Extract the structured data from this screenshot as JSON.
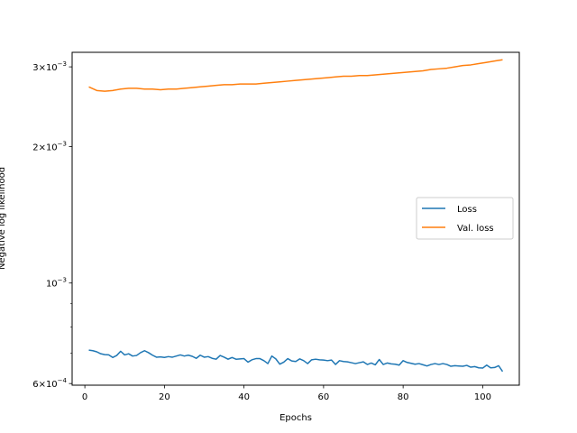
{
  "chart_data": {
    "type": "line",
    "title": "",
    "xlabel": "Epochs",
    "ylabel": "Negative log likelihood",
    "yscale": "log",
    "xlim": [
      -3.2,
      109.2
    ],
    "ylim": [
      0.000595,
      0.00323
    ],
    "x_ticks": [
      0,
      20,
      40,
      60,
      80,
      100
    ],
    "x_tick_labels": [
      "0",
      "20",
      "40",
      "60",
      "80",
      "100"
    ],
    "y_major_ticks": [
      0.0006,
      0.001,
      0.002,
      0.003
    ],
    "y_major_tick_labels": [
      {
        "mantissa": "6",
        "exponent": "−4"
      },
      {
        "mantissa": "",
        "exponent": "−3"
      },
      {
        "mantissa": "2",
        "exponent": "−3"
      },
      {
        "mantissa": "3",
        "exponent": "−3"
      }
    ],
    "y_minor_ticks": [
      0.0007,
      0.0008,
      0.0009
    ],
    "grid": false,
    "legend_position": "center-right",
    "series": [
      {
        "name": "Loss",
        "color": "#1f77b4",
        "x": [
          1,
          2,
          3,
          4,
          5,
          6,
          7,
          8,
          9,
          10,
          11,
          12,
          13,
          14,
          15,
          16,
          17,
          18,
          19,
          20,
          21,
          22,
          23,
          24,
          25,
          26,
          27,
          28,
          29,
          30,
          31,
          32,
          33,
          34,
          35,
          36,
          37,
          38,
          39,
          40,
          41,
          42,
          43,
          44,
          45,
          46,
          47,
          48,
          49,
          50,
          51,
          52,
          53,
          54,
          55,
          56,
          57,
          58,
          59,
          60,
          61,
          62,
          63,
          64,
          65,
          66,
          67,
          68,
          69,
          70,
          71,
          72,
          73,
          74,
          75,
          76,
          77,
          78,
          79,
          80,
          81,
          82,
          83,
          84,
          85,
          86,
          87,
          88,
          89,
          90,
          91,
          92,
          93,
          94,
          95,
          96,
          97,
          98,
          99,
          100,
          101,
          102,
          103,
          104,
          105
        ],
        "values": [
          0.000711,
          0.000709,
          0.000705,
          0.000698,
          0.000695,
          0.000694,
          0.000685,
          0.000692,
          0.000707,
          0.000694,
          0.000698,
          0.00069,
          0.000692,
          0.000702,
          0.000709,
          0.000702,
          0.000693,
          0.000686,
          0.000687,
          0.000685,
          0.000688,
          0.000686,
          0.00069,
          0.000694,
          0.00069,
          0.000693,
          0.000689,
          0.000682,
          0.000693,
          0.000686,
          0.000688,
          0.000682,
          0.000679,
          0.000692,
          0.000686,
          0.000679,
          0.000685,
          0.000679,
          0.00068,
          0.000681,
          0.000669,
          0.000677,
          0.000681,
          0.000681,
          0.000674,
          0.000664,
          0.00069,
          0.00068,
          0.000662,
          0.000669,
          0.000681,
          0.000673,
          0.000671,
          0.00068,
          0.000674,
          0.000664,
          0.000677,
          0.000679,
          0.000677,
          0.000676,
          0.000674,
          0.000676,
          0.000661,
          0.000674,
          0.000671,
          0.00067,
          0.000667,
          0.000664,
          0.000667,
          0.00067,
          0.000661,
          0.000666,
          0.00066,
          0.000678,
          0.000661,
          0.000666,
          0.000663,
          0.000662,
          0.000659,
          0.000674,
          0.000668,
          0.000665,
          0.000662,
          0.000664,
          0.00066,
          0.000656,
          0.000661,
          0.000664,
          0.000661,
          0.000664,
          0.000661,
          0.000655,
          0.000657,
          0.000656,
          0.000655,
          0.000658,
          0.000652,
          0.000654,
          0.00065,
          0.000649,
          0.000659,
          0.00065,
          0.000651,
          0.000657,
          0.000638
        ]
      },
      {
        "name": "Val. loss",
        "color": "#ff7f0e",
        "x": [
          1,
          3,
          5,
          7,
          9,
          11,
          13,
          15,
          17,
          19,
          21,
          23,
          25,
          27,
          29,
          31,
          33,
          35,
          37,
          39,
          41,
          43,
          45,
          47,
          49,
          51,
          53,
          55,
          57,
          59,
          61,
          63,
          65,
          67,
          69,
          71,
          73,
          75,
          77,
          79,
          81,
          83,
          85,
          87,
          89,
          91,
          93,
          95,
          97,
          99,
          101,
          103,
          105
        ],
        "values": [
          0.00271,
          0.00266,
          0.00265,
          0.00266,
          0.00268,
          0.00269,
          0.00269,
          0.00268,
          0.00268,
          0.00267,
          0.00268,
          0.00268,
          0.00269,
          0.0027,
          0.00271,
          0.00272,
          0.00273,
          0.00274,
          0.00274,
          0.00275,
          0.00275,
          0.00275,
          0.00276,
          0.00277,
          0.00278,
          0.00279,
          0.0028,
          0.00281,
          0.00282,
          0.00283,
          0.00284,
          0.00285,
          0.00286,
          0.00286,
          0.00287,
          0.00287,
          0.00288,
          0.00289,
          0.0029,
          0.00291,
          0.00292,
          0.00293,
          0.00294,
          0.00296,
          0.00297,
          0.00298,
          0.003,
          0.00302,
          0.00303,
          0.00305,
          0.00307,
          0.00309,
          0.00311
        ]
      }
    ]
  }
}
